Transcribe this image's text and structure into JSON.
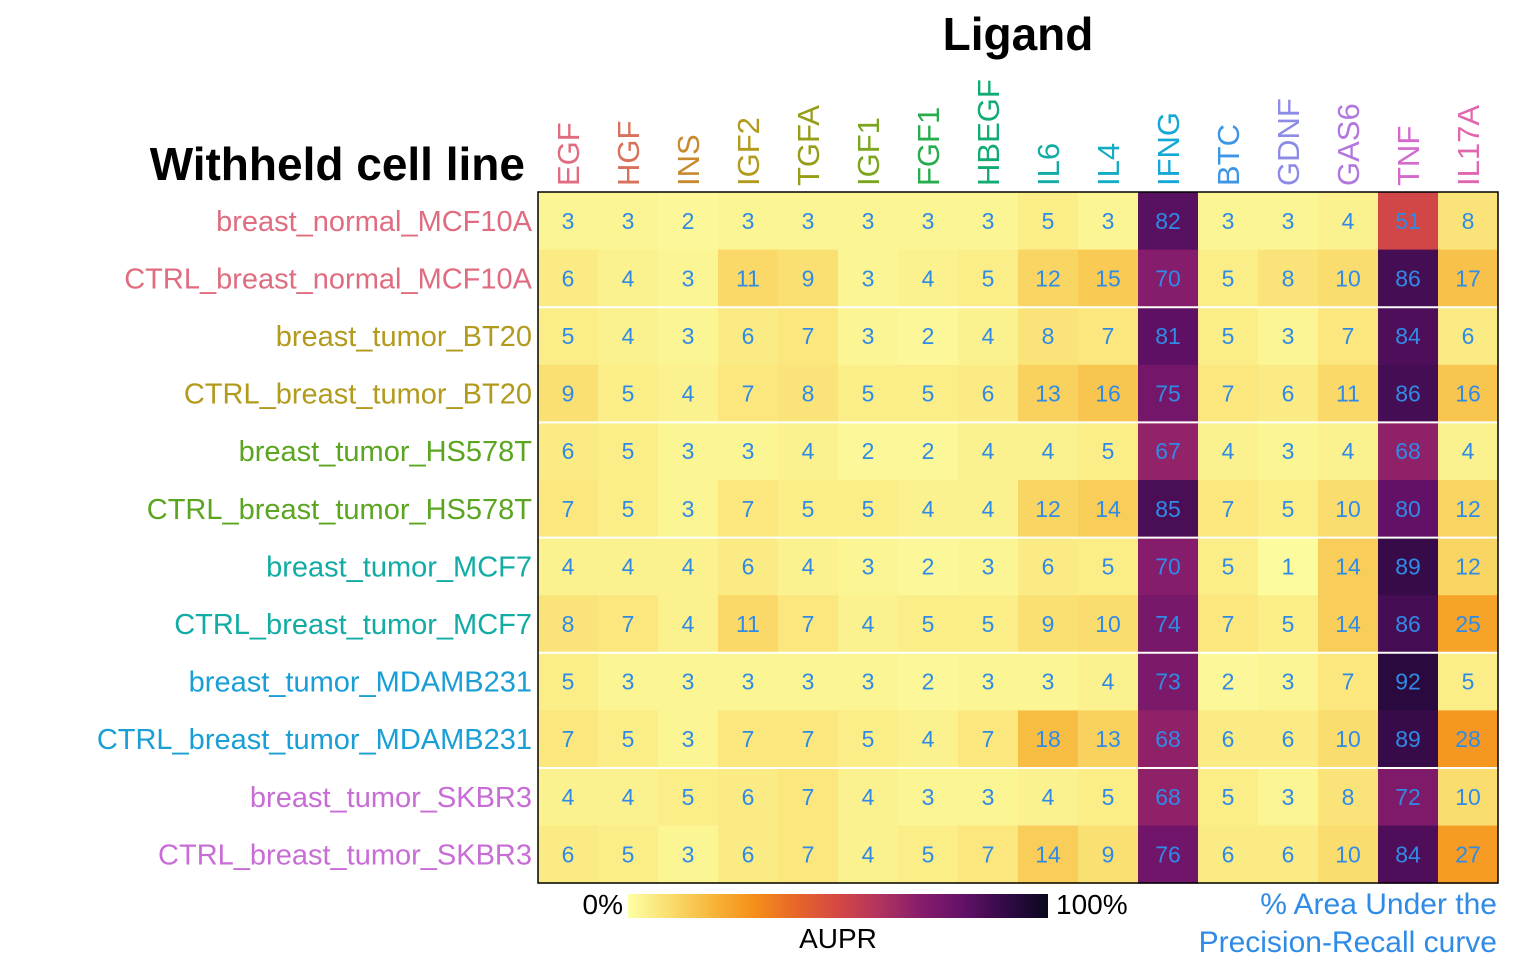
{
  "chart_data": {
    "type": "heatmap",
    "col_title": "Ligand",
    "row_title": "Withheld cell line",
    "columns": [
      "EGF",
      "HGF",
      "INS",
      "IGF2",
      "TGFA",
      "IGF1",
      "FGF1",
      "HBEGF",
      "IL6",
      "IL4",
      "IFNG",
      "BTC",
      "GDNF",
      "GAS6",
      "TNF",
      "IL17A"
    ],
    "column_colors": [
      "#E06C80",
      "#D9725C",
      "#C88A2E",
      "#B29A1C",
      "#969D16",
      "#7AA51C",
      "#27AC4E",
      "#12AC72",
      "#12ACA5",
      "#14ABC4",
      "#13A8D6",
      "#3D96E3",
      "#8D8BE6",
      "#B277DE",
      "#D36ACC",
      "#E066AE"
    ],
    "rows": [
      "breast_normal_MCF10A",
      "CTRL_breast_normal_MCF10A",
      "breast_tumor_BT20",
      "CTRL_breast_tumor_BT20",
      "breast_tumor_HS578T",
      "CTRL_breast_tumor_HS578T",
      "breast_tumor_MCF7",
      "CTRL_breast_tumor_MCF7",
      "breast_tumor_MDAMB231",
      "CTRL_breast_tumor_MDAMB231",
      "breast_tumor_SKBR3",
      "CTRL_breast_tumor_SKBR3"
    ],
    "row_colors": [
      "#E06C80",
      "#E06C80",
      "#B29A1C",
      "#B29A1C",
      "#5BA520",
      "#5BA520",
      "#12ACA5",
      "#12ACA5",
      "#1A9ED6",
      "#1A9ED6",
      "#C86DD6",
      "#C86DD6"
    ],
    "values": [
      [
        3,
        3,
        2,
        3,
        3,
        3,
        3,
        3,
        5,
        3,
        82,
        3,
        3,
        4,
        51,
        8
      ],
      [
        6,
        4,
        3,
        11,
        9,
        3,
        4,
        5,
        12,
        15,
        70,
        5,
        8,
        10,
        86,
        17
      ],
      [
        5,
        4,
        3,
        6,
        7,
        3,
        2,
        4,
        8,
        7,
        81,
        5,
        3,
        7,
        84,
        6
      ],
      [
        9,
        5,
        4,
        7,
        8,
        5,
        5,
        6,
        13,
        16,
        75,
        7,
        6,
        11,
        86,
        16
      ],
      [
        6,
        5,
        3,
        3,
        4,
        2,
        2,
        4,
        4,
        5,
        67,
        4,
        3,
        4,
        68,
        4
      ],
      [
        7,
        5,
        3,
        7,
        5,
        5,
        4,
        4,
        12,
        14,
        85,
        7,
        5,
        10,
        80,
        12
      ],
      [
        4,
        4,
        4,
        6,
        4,
        3,
        2,
        3,
        6,
        5,
        70,
        5,
        1,
        14,
        89,
        12
      ],
      [
        8,
        7,
        4,
        11,
        7,
        4,
        5,
        5,
        9,
        10,
        74,
        7,
        5,
        14,
        86,
        25
      ],
      [
        5,
        3,
        3,
        3,
        3,
        3,
        2,
        3,
        3,
        4,
        73,
        2,
        3,
        7,
        92,
        5
      ],
      [
        7,
        5,
        3,
        7,
        7,
        5,
        4,
        7,
        18,
        13,
        68,
        6,
        6,
        10,
        89,
        28
      ],
      [
        4,
        4,
        5,
        6,
        7,
        4,
        3,
        3,
        4,
        5,
        68,
        5,
        3,
        8,
        72,
        10
      ],
      [
        6,
        5,
        3,
        6,
        7,
        4,
        5,
        7,
        14,
        9,
        76,
        6,
        6,
        10,
        84,
        27
      ]
    ],
    "value_label_color": "#2F8BE6",
    "color_scale": {
      "name": "inferno-reversed",
      "range": [
        0,
        100
      ],
      "min_label": "0%",
      "max_label": "100%",
      "title": "AUPR"
    },
    "annotation": [
      "% Area Under the",
      "Precision-Recall curve"
    ],
    "annotation_color": "#2F8BE6"
  }
}
